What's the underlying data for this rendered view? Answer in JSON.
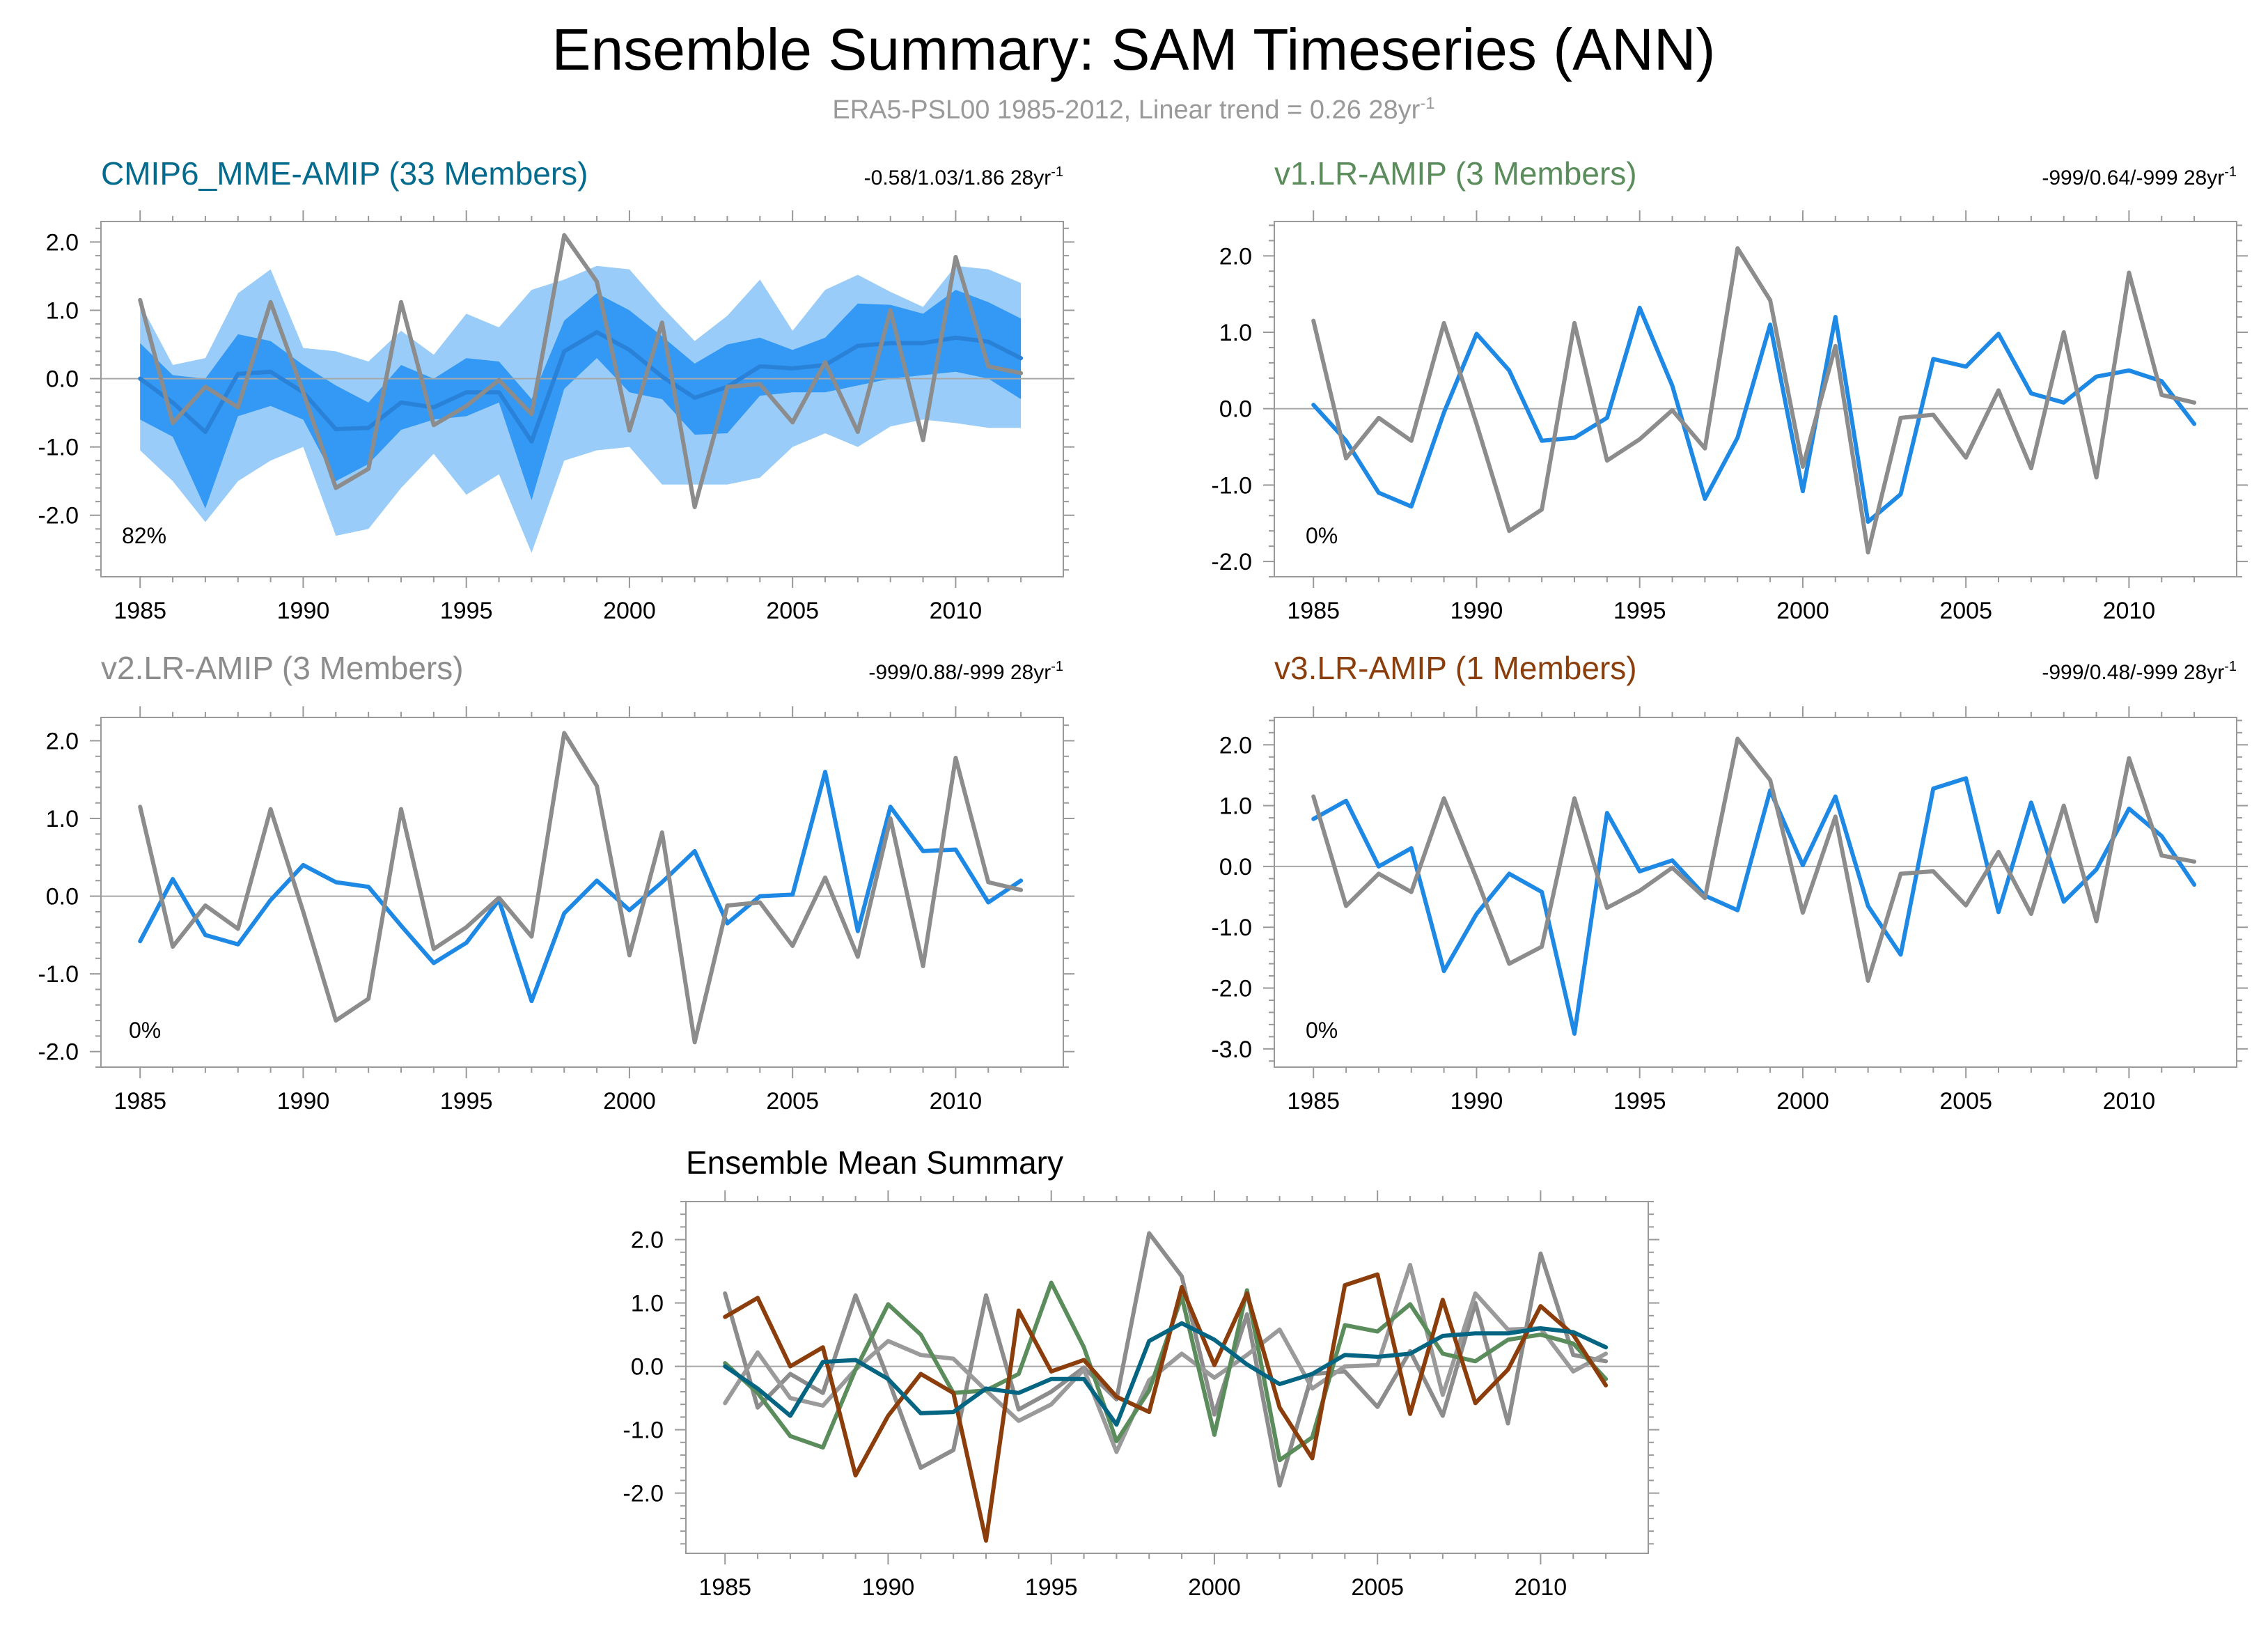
{
  "title": "Ensemble Summary: SAM Timeseries (ANN)",
  "subtitle_prefix": "ERA5-PSL00 1985-2012, Linear trend = 0.26 28yr",
  "subtitle_sup": "-1",
  "colors": {
    "obs": "#8c8c8c",
    "model": "#1e88e5",
    "band_outer": "#99ccf8",
    "band_inner": "#3399f5",
    "mme_mean": "#2a82d8",
    "ens_cmip6": "#046583",
    "ens_v1": "#5b8c5c",
    "ens_v2": "#8c8c8c",
    "ens_v3": "#8b3e0b"
  },
  "chart_data": [
    {
      "type": "line",
      "id": "cmip6",
      "title": "CMIP6_MME-AMIP (33 Members)",
      "title_color": "#036b8e",
      "stats": "-0.58/1.03/1.86 28yr",
      "stats_sup": "-1",
      "pct": "82%",
      "x": [
        1985,
        1986,
        1987,
        1988,
        1989,
        1990,
        1991,
        1992,
        1993,
        1994,
        1995,
        1996,
        1997,
        1998,
        1999,
        2000,
        2001,
        2002,
        2003,
        2004,
        2005,
        2006,
        2007,
        2008,
        2009,
        2010,
        2011,
        2012
      ],
      "xticks": [
        1985,
        1990,
        1995,
        2000,
        2005,
        2010
      ],
      "xtick_labels": [
        "1985",
        "1990",
        "1995",
        "2000",
        "2005",
        "2010"
      ],
      "yticks": [
        -2,
        -1,
        0,
        1,
        2
      ],
      "ytick_labels": [
        "-2.0",
        "-1.0",
        "0.0",
        "1.0",
        "2.0"
      ],
      "ylim": [
        -2.9,
        2.3
      ],
      "obs": [
        1.15,
        -0.65,
        -0.12,
        -0.42,
        1.12,
        -0.2,
        -1.6,
        -1.32,
        1.12,
        -0.68,
        -0.4,
        -0.02,
        -0.52,
        2.1,
        1.42,
        -0.76,
        0.82,
        -1.88,
        -0.12,
        -0.08,
        -0.64,
        0.24,
        -0.78,
        1.0,
        -0.9,
        1.78,
        0.18,
        0.08
      ],
      "mean": [
        0.0,
        -0.35,
        -0.78,
        0.07,
        0.1,
        -0.2,
        -0.74,
        -0.72,
        -0.35,
        -0.42,
        -0.2,
        -0.2,
        -0.92,
        0.4,
        0.68,
        0.42,
        0.03,
        -0.28,
        -0.12,
        0.18,
        0.15,
        0.2,
        0.48,
        0.52,
        0.52,
        0.6,
        0.54,
        0.3
      ],
      "band_outer_low": [
        -1.05,
        -1.5,
        -2.1,
        -1.5,
        -1.2,
        -1.0,
        -2.3,
        -2.2,
        -1.6,
        -1.1,
        -1.7,
        -1.4,
        -2.55,
        -1.2,
        -1.05,
        -1.0,
        -1.55,
        -1.55,
        -1.55,
        -1.45,
        -1.0,
        -0.8,
        -1.0,
        -0.7,
        -0.6,
        -0.65,
        -0.72,
        -0.72
      ],
      "band_outer_high": [
        1.1,
        0.2,
        0.3,
        1.25,
        1.6,
        0.45,
        0.4,
        0.25,
        0.7,
        0.35,
        0.95,
        0.75,
        1.3,
        1.45,
        1.65,
        1.6,
        1.05,
        0.55,
        0.92,
        1.45,
        0.7,
        1.3,
        1.52,
        1.27,
        1.05,
        1.65,
        1.6,
        1.4
      ],
      "band_inner_low": [
        -0.6,
        -0.85,
        -1.9,
        -0.55,
        -0.4,
        -0.6,
        -1.5,
        -1.25,
        -0.75,
        -0.6,
        -0.55,
        -0.35,
        -1.78,
        -0.15,
        0.3,
        -0.2,
        -0.3,
        -0.82,
        -0.8,
        -0.25,
        -0.2,
        -0.2,
        -0.1,
        0.0,
        0.05,
        0.1,
        0.0,
        -0.3
      ],
      "band_inner_high": [
        0.52,
        0.05,
        0.0,
        0.65,
        0.55,
        0.2,
        -0.1,
        -0.35,
        0.2,
        0.0,
        0.3,
        0.25,
        -0.3,
        0.85,
        1.25,
        1.0,
        0.62,
        0.22,
        0.5,
        0.6,
        0.42,
        0.6,
        1.1,
        1.08,
        0.95,
        1.3,
        1.12,
        0.88
      ]
    },
    {
      "type": "line",
      "id": "v1",
      "title": "v1.LR-AMIP (3 Members)",
      "title_color": "#5b8c5c",
      "stats": "-999/0.64/-999 28yr",
      "stats_sup": "-1",
      "pct": "0%",
      "x": [
        1985,
        1986,
        1987,
        1988,
        1989,
        1990,
        1991,
        1992,
        1993,
        1994,
        1995,
        1996,
        1997,
        1998,
        1999,
        2000,
        2001,
        2002,
        2003,
        2004,
        2005,
        2006,
        2007,
        2008,
        2009,
        2010,
        2011,
        2012
      ],
      "xticks": [
        1985,
        1990,
        1995,
        2000,
        2005,
        2010
      ],
      "xtick_labels": [
        "1985",
        "1990",
        "1995",
        "2000",
        "2005",
        "2010"
      ],
      "yticks": [
        -2,
        -1,
        0,
        1,
        2
      ],
      "ytick_labels": [
        "-2.0",
        "-1.0",
        "0.0",
        "1.0",
        "2.0"
      ],
      "ylim": [
        -2.2,
        2.45
      ],
      "obs": [
        1.15,
        -0.65,
        -0.12,
        -0.42,
        1.12,
        -0.2,
        -1.6,
        -1.32,
        1.12,
        -0.68,
        -0.4,
        -0.02,
        -0.52,
        2.1,
        1.42,
        -0.76,
        0.82,
        -1.88,
        -0.12,
        -0.08,
        -0.64,
        0.24,
        -0.78,
        1.0,
        -0.9,
        1.78,
        0.18,
        0.08
      ],
      "model": [
        0.05,
        -0.42,
        -1.1,
        -1.28,
        -0.05,
        0.98,
        0.5,
        -0.42,
        -0.38,
        -0.12,
        1.32,
        0.3,
        -1.18,
        -0.38,
        1.1,
        -1.08,
        1.2,
        -1.48,
        -1.12,
        0.65,
        0.55,
        0.98,
        0.2,
        0.08,
        0.42,
        0.5,
        0.36,
        -0.2
      ]
    },
    {
      "type": "line",
      "id": "v2",
      "title": "v2.LR-AMIP (3 Members)",
      "title_color": "#8c8c8c",
      "stats": "-999/0.88/-999 28yr",
      "stats_sup": "-1",
      "pct": "0%",
      "x": [
        1985,
        1986,
        1987,
        1988,
        1989,
        1990,
        1991,
        1992,
        1993,
        1994,
        1995,
        1996,
        1997,
        1998,
        1999,
        2000,
        2001,
        2002,
        2003,
        2004,
        2005,
        2006,
        2007,
        2008,
        2009,
        2010,
        2011,
        2012
      ],
      "xticks": [
        1985,
        1990,
        1995,
        2000,
        2005,
        2010
      ],
      "xtick_labels": [
        "1985",
        "1990",
        "1995",
        "2000",
        "2005",
        "2010"
      ],
      "yticks": [
        -2,
        -1,
        0,
        1,
        2
      ],
      "ytick_labels": [
        "-2.0",
        "-1.0",
        "0.0",
        "1.0",
        "2.0"
      ],
      "ylim": [
        -2.2,
        2.3
      ],
      "obs": [
        1.15,
        -0.65,
        -0.12,
        -0.42,
        1.12,
        -0.2,
        -1.6,
        -1.32,
        1.12,
        -0.68,
        -0.4,
        -0.02,
        -0.52,
        2.1,
        1.42,
        -0.76,
        0.82,
        -1.88,
        -0.12,
        -0.08,
        -0.64,
        0.24,
        -0.78,
        1.0,
        -0.9,
        1.78,
        0.18,
        0.08
      ],
      "model": [
        -0.58,
        0.22,
        -0.5,
        -0.62,
        -0.05,
        0.4,
        0.18,
        0.12,
        -0.38,
        -0.86,
        -0.6,
        -0.05,
        -1.35,
        -0.22,
        0.2,
        -0.18,
        0.18,
        0.58,
        -0.35,
        0.0,
        0.02,
        1.6,
        -0.45,
        1.15,
        0.58,
        0.6,
        -0.08,
        0.2
      ]
    },
    {
      "type": "line",
      "id": "v3",
      "title": "v3.LR-AMIP (1 Members)",
      "title_color": "#8b3e0b",
      "stats": "-999/0.48/-999 28yr",
      "stats_sup": "-1",
      "pct": "0%",
      "x": [
        1985,
        1986,
        1987,
        1988,
        1989,
        1990,
        1991,
        1992,
        1993,
        1994,
        1995,
        1996,
        1997,
        1998,
        1999,
        2000,
        2001,
        2002,
        2003,
        2004,
        2005,
        2006,
        2007,
        2008,
        2009,
        2010,
        2011,
        2012
      ],
      "xticks": [
        1985,
        1990,
        1995,
        2000,
        2005,
        2010
      ],
      "xtick_labels": [
        "1985",
        "1990",
        "1995",
        "2000",
        "2005",
        "2010"
      ],
      "yticks": [
        -3,
        -2,
        -1,
        0,
        1,
        2
      ],
      "ytick_labels": [
        "-3.0",
        "-2.0",
        "-1.0",
        "0.0",
        "1.0",
        "2.0"
      ],
      "ylim": [
        -3.3,
        2.45
      ],
      "obs": [
        1.15,
        -0.65,
        -0.12,
        -0.42,
        1.12,
        -0.2,
        -1.6,
        -1.32,
        1.12,
        -0.68,
        -0.4,
        -0.02,
        -0.52,
        2.1,
        1.42,
        -0.76,
        0.82,
        -1.88,
        -0.12,
        -0.08,
        -0.64,
        0.24,
        -0.78,
        1.0,
        -0.9,
        1.78,
        0.18,
        0.08
      ],
      "model": [
        0.78,
        1.08,
        0.0,
        0.3,
        -1.72,
        -0.78,
        -0.12,
        -0.42,
        -2.75,
        0.88,
        -0.08,
        0.1,
        -0.48,
        -0.72,
        1.25,
        0.02,
        1.15,
        -0.65,
        -1.45,
        1.28,
        1.45,
        -0.75,
        1.05,
        -0.58,
        -0.05,
        0.95,
        0.5,
        -0.3
      ]
    },
    {
      "type": "line",
      "id": "summary",
      "title": "Ensemble Mean Summary",
      "title_color": "#000000",
      "x": [
        1985,
        1986,
        1987,
        1988,
        1989,
        1990,
        1991,
        1992,
        1993,
        1994,
        1995,
        1996,
        1997,
        1998,
        1999,
        2000,
        2001,
        2002,
        2003,
        2004,
        2005,
        2006,
        2007,
        2008,
        2009,
        2010,
        2011,
        2012
      ],
      "xticks": [
        1985,
        1990,
        1995,
        2000,
        2005,
        2010
      ],
      "xtick_labels": [
        "1985",
        "1990",
        "1995",
        "2000",
        "2005",
        "2010"
      ],
      "yticks": [
        -2,
        -1,
        0,
        1,
        2
      ],
      "ytick_labels": [
        "-2.0",
        "-1.0",
        "0.0",
        "1.0",
        "2.0"
      ],
      "ylim": [
        -2.95,
        2.6
      ],
      "series": [
        {
          "name": "ERA5-PSL00",
          "color": "#8c8c8c",
          "values": [
            1.15,
            -0.65,
            -0.12,
            -0.42,
            1.12,
            -0.2,
            -1.6,
            -1.32,
            1.12,
            -0.68,
            -0.4,
            -0.02,
            -0.52,
            2.1,
            1.42,
            -0.76,
            0.82,
            -1.88,
            -0.12,
            -0.08,
            -0.64,
            0.24,
            -0.78,
            1.0,
            -0.9,
            1.78,
            0.18,
            0.08
          ]
        },
        {
          "name": "v2.LR-AMIP",
          "color": "#9a9a9a",
          "values": [
            -0.58,
            0.22,
            -0.5,
            -0.62,
            -0.05,
            0.4,
            0.18,
            0.12,
            -0.38,
            -0.86,
            -0.6,
            -0.05,
            -1.35,
            -0.22,
            0.2,
            -0.18,
            0.18,
            0.58,
            -0.35,
            0.0,
            0.02,
            1.6,
            -0.45,
            1.15,
            0.58,
            0.6,
            -0.08,
            0.2
          ]
        },
        {
          "name": "v1.LR-AMIP",
          "color": "#5b8c5c",
          "values": [
            0.05,
            -0.42,
            -1.1,
            -1.28,
            -0.05,
            0.98,
            0.5,
            -0.42,
            -0.38,
            -0.12,
            1.32,
            0.3,
            -1.18,
            -0.38,
            1.1,
            -1.08,
            1.2,
            -1.48,
            -1.12,
            0.65,
            0.55,
            0.98,
            0.2,
            0.08,
            0.42,
            0.5,
            0.36,
            -0.2
          ]
        },
        {
          "name": "v3.LR-AMIP",
          "color": "#8b3e0b",
          "values": [
            0.78,
            1.08,
            0.0,
            0.3,
            -1.72,
            -0.78,
            -0.12,
            -0.42,
            -2.75,
            0.88,
            -0.08,
            0.1,
            -0.48,
            -0.72,
            1.25,
            0.02,
            1.15,
            -0.65,
            -1.45,
            1.28,
            1.45,
            -0.75,
            1.05,
            -0.58,
            -0.05,
            0.95,
            0.5,
            -0.3
          ]
        },
        {
          "name": "CMIP6_MME-AMIP",
          "color": "#046583",
          "values": [
            0.0,
            -0.35,
            -0.78,
            0.07,
            0.1,
            -0.2,
            -0.74,
            -0.72,
            -0.35,
            -0.42,
            -0.2,
            -0.2,
            -0.92,
            0.4,
            0.68,
            0.42,
            0.03,
            -0.28,
            -0.12,
            0.18,
            0.15,
            0.2,
            0.48,
            0.52,
            0.52,
            0.6,
            0.54,
            0.3
          ]
        }
      ]
    }
  ]
}
